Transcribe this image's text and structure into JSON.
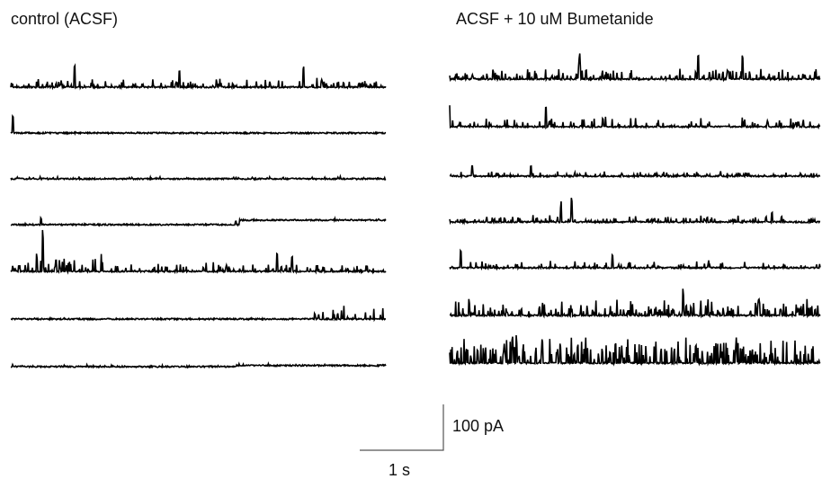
{
  "chart_data": {
    "type": "line",
    "panels": [
      {
        "title": "control (ACSF)",
        "traces": [
          {
            "amp": 0.25,
            "density": 0.55,
            "events": [
              [
                0.17,
                1.0
              ],
              [
                0.45,
                0.8
              ],
              [
                0.78,
                0.9
              ]
            ],
            "step": null,
            "burst": null
          },
          {
            "amp": 0.02,
            "density": 0.02,
            "events": [
              [
                0.005,
                0.8
              ]
            ],
            "step": null,
            "burst": null
          },
          {
            "amp": 0.06,
            "density": 0.4,
            "events": [],
            "step": null,
            "burst": null
          },
          {
            "amp": 0.04,
            "density": 0.08,
            "events": [
              [
                0.08,
                0.3
              ],
              [
                0.6,
                0.15
              ]
            ],
            "step": [
              0.61,
              -0.12
            ],
            "burst": null
          },
          {
            "amp": 0.25,
            "density": 0.5,
            "events": [
              [
                0.085,
                1.6
              ],
              [
                0.07,
                0.6
              ],
              [
                0.71,
                0.8
              ],
              [
                0.75,
                0.7
              ]
            ],
            "step": null,
            "burst": [
              0.0,
              0.25
            ]
          },
          {
            "amp": 0.05,
            "density": 0.05,
            "events": [],
            "step": null,
            "burst": [
              0.8,
              1.0
            ]
          },
          {
            "amp": 0.04,
            "density": 0.3,
            "events": [],
            "step": [
              0.6,
              -0.03
            ],
            "burst": null
          }
        ]
      },
      {
        "title": "ACSF + 10 uM Bumetanide",
        "traces": [
          {
            "amp": 0.3,
            "density": 0.75,
            "events": [
              [
                0.35,
                1.0
              ],
              [
                0.67,
                1.1
              ],
              [
                0.79,
                1.0
              ]
            ],
            "step": null,
            "burst": [
              0.34,
              0.38
            ]
          },
          {
            "amp": 0.3,
            "density": 0.45,
            "events": [
              [
                0.0,
                1.0
              ],
              [
                0.26,
                0.9
              ]
            ],
            "step": null,
            "burst": null
          },
          {
            "amp": 0.15,
            "density": 0.45,
            "events": [
              [
                0.06,
                0.5
              ],
              [
                0.22,
                0.45
              ]
            ],
            "step": null,
            "burst": null
          },
          {
            "amp": 0.2,
            "density": 0.45,
            "events": [
              [
                0.33,
                1.0
              ],
              [
                0.3,
                0.7
              ],
              [
                0.87,
                0.45
              ]
            ],
            "step": null,
            "burst": null
          },
          {
            "amp": 0.2,
            "density": 0.35,
            "events": [
              [
                0.03,
                0.8
              ],
              [
                0.44,
                0.6
              ]
            ],
            "step": null,
            "burst": null
          },
          {
            "amp": 0.45,
            "density": 0.6,
            "events": [
              [
                0.63,
                1.0
              ]
            ],
            "step": null,
            "burst": [
              0.48,
              1.0
            ]
          },
          {
            "amp": 0.8,
            "density": 0.9,
            "events": [
              [
                0.5,
                0.9
              ]
            ],
            "step": null,
            "burst": [
              0.0,
              0.47
            ]
          }
        ]
      }
    ],
    "scale_bar": {
      "time_label": "1 s",
      "current_label": "100 pA"
    }
  }
}
